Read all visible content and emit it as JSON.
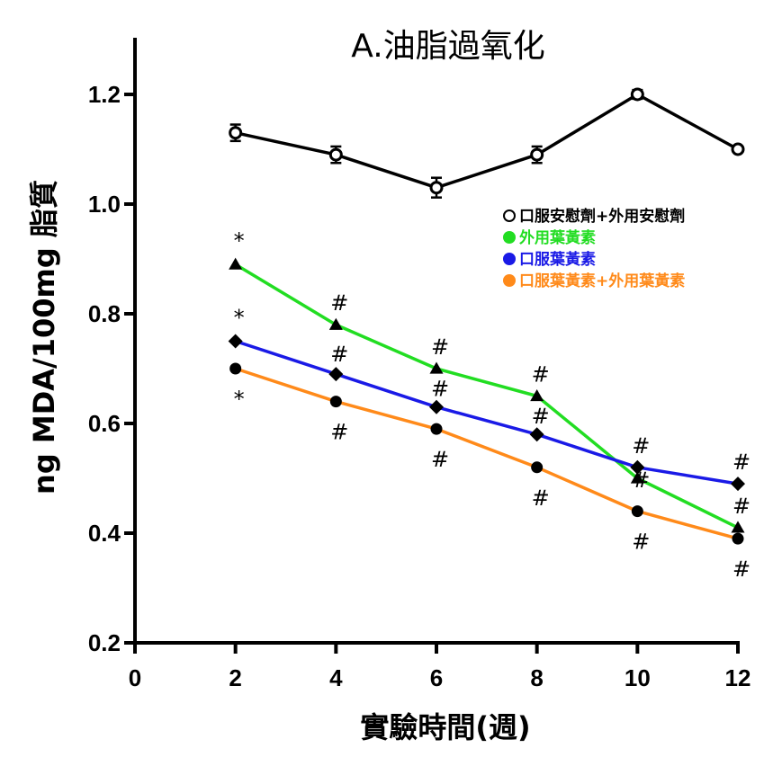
{
  "chart_data": {
    "type": "line",
    "title": "A.油脂過氧化",
    "xlabel": "實驗時間(週)",
    "ylabel": "ng MDA/100mg 脂質",
    "xlim": [
      0,
      12
    ],
    "ylim": [
      0.2,
      1.2
    ],
    "x_ticks": [
      "0",
      "2",
      "4",
      "6",
      "8",
      "10",
      "12"
    ],
    "y_ticks": [
      "0.2",
      "0.4",
      "0.6",
      "0.8",
      "1.0",
      "1.2"
    ],
    "x": [
      2,
      4,
      6,
      8,
      10,
      12
    ],
    "grid": false,
    "legend_position": "right",
    "series": [
      {
        "name": "口服安慰劑+外用安慰劑",
        "color": "#000000",
        "marker": "open-circle",
        "values": [
          1.13,
          1.09,
          1.03,
          1.09,
          1.2,
          1.1
        ],
        "errors": [
          0.015,
          0.015,
          0.018,
          0.015,
          0.008,
          0.005
        ],
        "annotations": [
          "",
          "",
          "",
          "",
          "",
          ""
        ]
      },
      {
        "name": "外用葉黃素",
        "color": "#22dd22",
        "marker": "triangle",
        "values": [
          0.89,
          0.78,
          0.7,
          0.65,
          0.5,
          0.41
        ],
        "annotations": [
          "*",
          "#",
          "#",
          "#",
          "#",
          "#"
        ]
      },
      {
        "name": "口服葉黃素",
        "color": "#1a1ae6",
        "marker": "diamond",
        "values": [
          0.75,
          0.69,
          0.63,
          0.58,
          0.52,
          0.49
        ],
        "annotations": [
          "*",
          "#",
          "#",
          "#",
          "#",
          "#"
        ]
      },
      {
        "name": "口服葉黃素+外用葉黃素",
        "color": "#ff8a1a",
        "marker": "filled-circle",
        "values": [
          0.7,
          0.64,
          0.59,
          0.52,
          0.44,
          0.39
        ],
        "annotations": [
          "*",
          "#",
          "#",
          "#",
          "#",
          "#"
        ]
      }
    ]
  }
}
